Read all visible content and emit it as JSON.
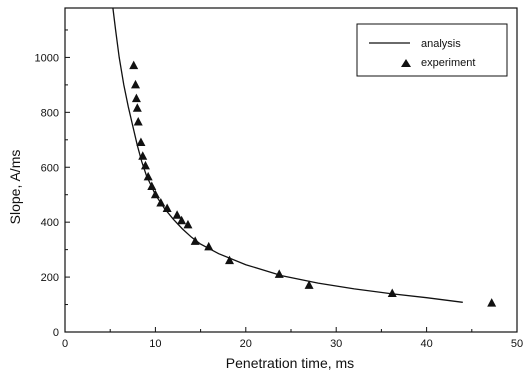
{
  "chart_data": {
    "type": "scatter",
    "xlabel": "Penetration time, ms",
    "ylabel": "Slope, A/ms",
    "xlim": [
      0,
      50
    ],
    "ylim": [
      0,
      1180
    ],
    "x_ticks": [
      0,
      10,
      20,
      30,
      40,
      50
    ],
    "y_ticks": [
      0,
      200,
      400,
      600,
      800,
      1000
    ],
    "grid": false,
    "legend_position": "top-right",
    "series": [
      {
        "name": "analysis",
        "kind": "line",
        "color": "#111111",
        "points": [
          [
            5.3,
            1180
          ],
          [
            5.6,
            1100
          ],
          [
            6.0,
            1000
          ],
          [
            6.5,
            900
          ],
          [
            7.0,
            820
          ],
          [
            7.5,
            750
          ],
          [
            8.0,
            680
          ],
          [
            8.5,
            620
          ],
          [
            9.0,
            570
          ],
          [
            10.0,
            500
          ],
          [
            11.0,
            450
          ],
          [
            12.0,
            410
          ],
          [
            13.0,
            375
          ],
          [
            14.0,
            345
          ],
          [
            15.0,
            320
          ],
          [
            17.0,
            285
          ],
          [
            20.0,
            245
          ],
          [
            24.0,
            205
          ],
          [
            28.0,
            178
          ],
          [
            32.0,
            157
          ],
          [
            36.0,
            140
          ],
          [
            40.0,
            125
          ],
          [
            44.0,
            108
          ]
        ]
      },
      {
        "name": "experiment",
        "kind": "scatter",
        "marker": "triangle",
        "color": "#111111",
        "points": [
          [
            7.6,
            970
          ],
          [
            7.8,
            900
          ],
          [
            7.9,
            850
          ],
          [
            8.0,
            815
          ],
          [
            8.1,
            765
          ],
          [
            8.4,
            690
          ],
          [
            8.6,
            640
          ],
          [
            8.9,
            605
          ],
          [
            9.2,
            565
          ],
          [
            9.6,
            530
          ],
          [
            10.0,
            500
          ],
          [
            10.6,
            470
          ],
          [
            11.3,
            450
          ],
          [
            12.4,
            425
          ],
          [
            12.9,
            405
          ],
          [
            13.6,
            390
          ],
          [
            14.4,
            330
          ],
          [
            15.9,
            310
          ],
          [
            18.2,
            260
          ],
          [
            23.7,
            210
          ],
          [
            27.0,
            170
          ],
          [
            36.2,
            140
          ],
          [
            47.2,
            105
          ]
        ]
      }
    ]
  }
}
